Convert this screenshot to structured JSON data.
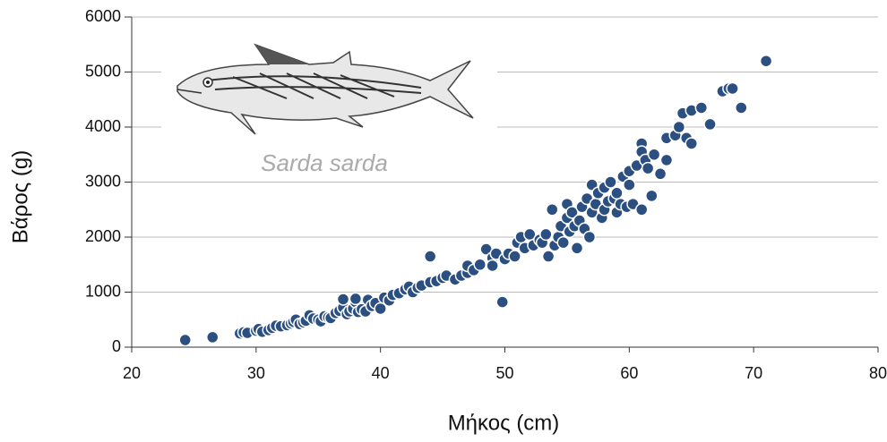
{
  "chart_data": {
    "type": "scatter",
    "x_label": "Μήκος (cm)",
    "y_label": "Βάρος (g)",
    "annotation": "Sarda sarda",
    "xlim": [
      20,
      80
    ],
    "xticks": [
      20,
      30,
      40,
      50,
      60,
      70,
      80
    ],
    "ylim": [
      0,
      6000
    ],
    "yticks": [
      0,
      1000,
      2000,
      3000,
      4000,
      5000,
      6000
    ],
    "grid": true,
    "series": [
      {
        "color": "#2b4f81",
        "x": [
          24.3,
          26.5,
          28.7,
          29,
          29.3,
          30,
          30.2,
          30.5,
          31,
          31.3,
          31.6,
          32,
          32.5,
          32.8,
          33,
          33.2,
          33.5,
          33.8,
          34,
          34.3,
          34.6,
          35,
          35.2,
          35.5,
          35.8,
          36,
          36.4,
          36.7,
          37,
          37,
          37.3,
          37.5,
          37.8,
          38,
          38,
          38.2,
          38.5,
          38.8,
          39,
          39.3,
          39.6,
          40,
          40.3,
          40.7,
          41,
          41.5,
          42,
          42.3,
          42.6,
          43,
          43.3,
          44,
          44,
          44.5,
          45,
          45.3,
          46,
          46.5,
          47,
          47,
          47.5,
          48,
          48.5,
          49,
          49,
          49.3,
          49.8,
          50,
          50.3,
          50.8,
          51,
          51.3,
          51.6,
          52,
          52.3,
          52.8,
          53,
          53.3,
          53.5,
          53.8,
          54,
          54.3,
          54.5,
          54.7,
          55,
          55,
          55.2,
          55.4,
          55.6,
          55.8,
          56,
          56.2,
          56.4,
          56.6,
          56.8,
          57,
          57,
          57.3,
          57.5,
          57.8,
          58,
          58,
          58.3,
          58.5,
          58.8,
          59,
          59,
          59.3,
          59.5,
          59.8,
          60,
          60,
          60.3,
          60.6,
          61,
          61,
          61,
          61.3,
          61.5,
          61.8,
          62,
          62.5,
          63,
          63,
          63.7,
          64,
          64.3,
          64.6,
          65,
          65,
          65.8,
          66.5,
          67.5,
          68,
          68.3,
          69,
          71
        ],
        "values": [
          130,
          180,
          250,
          270,
          260,
          300,
          330,
          280,
          310,
          350,
          390,
          380,
          400,
          430,
          460,
          500,
          420,
          450,
          480,
          580,
          520,
          500,
          470,
          560,
          540,
          530,
          620,
          660,
          720,
          870,
          600,
          650,
          700,
          820,
          880,
          640,
          690,
          650,
          860,
          750,
          800,
          700,
          900,
          850,
          950,
          980,
          1050,
          1100,
          1000,
          1080,
          1120,
          1180,
          1650,
          1200,
          1260,
          1300,
          1230,
          1300,
          1350,
          1480,
          1400,
          1500,
          1780,
          1620,
          1480,
          1700,
          820,
          1600,
          1700,
          1650,
          1900,
          2000,
          1800,
          2050,
          1850,
          1950,
          1900,
          2050,
          1650,
          2500,
          1850,
          2000,
          2200,
          1900,
          2350,
          2600,
          2100,
          2450,
          2200,
          1800,
          2300,
          2550,
          2150,
          2700,
          2000,
          2450,
          2950,
          2600,
          2800,
          2350,
          2500,
          2900,
          2650,
          3000,
          2700,
          2450,
          2800,
          2600,
          3100,
          2550,
          2950,
          3200,
          2600,
          3300,
          2500,
          3700,
          3550,
          3400,
          3250,
          2750,
          3500,
          3150,
          3800,
          3400,
          3850,
          4000,
          4250,
          3800,
          3700,
          4300,
          4350,
          4050,
          4650,
          4700,
          4700,
          4350,
          5200
        ]
      }
    ]
  }
}
